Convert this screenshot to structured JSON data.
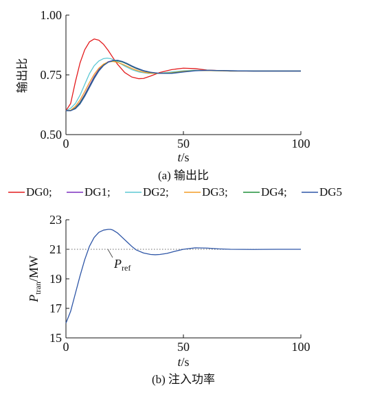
{
  "chart_data": [
    {
      "type": "line",
      "ylabel": "输出比",
      "xlabel_italic": "t",
      "xlabel_unit": "/s",
      "caption": "(a) 输出比",
      "xlim": [
        0,
        100
      ],
      "ylim": [
        0.5,
        1.0
      ],
      "x_ticks": [
        "0",
        "50",
        "100"
      ],
      "x_tick_values": [
        0,
        50,
        100
      ],
      "y_ticks": [
        "0.50",
        "0.75",
        "1.00"
      ],
      "y_tick_values": [
        0.5,
        0.75,
        1.0
      ],
      "grid": false,
      "legend_position": "below",
      "series": [
        {
          "name": "DG0",
          "color": "#e31a1c",
          "x": [
            0,
            2,
            4,
            6,
            8,
            10,
            12,
            14,
            16,
            18,
            20,
            22,
            25,
            28,
            31,
            33,
            36,
            40,
            45,
            50,
            55,
            60,
            70,
            80,
            90,
            100
          ],
          "y": [
            0.6,
            0.63,
            0.72,
            0.8,
            0.855,
            0.888,
            0.9,
            0.895,
            0.878,
            0.852,
            0.822,
            0.794,
            0.76,
            0.741,
            0.734,
            0.735,
            0.745,
            0.76,
            0.772,
            0.778,
            0.776,
            0.77,
            0.766,
            0.766,
            0.766,
            0.766
          ]
        },
        {
          "name": "DG1",
          "color": "#7b2fbf",
          "x": [
            0,
            2,
            4,
            6,
            8,
            10,
            12,
            14,
            16,
            18,
            20,
            22,
            24,
            26,
            28,
            30,
            33,
            36,
            40,
            45,
            50,
            55,
            60,
            70,
            80,
            90,
            100
          ],
          "y": [
            0.6,
            0.6,
            0.612,
            0.635,
            0.668,
            0.705,
            0.742,
            0.772,
            0.793,
            0.805,
            0.81,
            0.809,
            0.804,
            0.795,
            0.785,
            0.776,
            0.766,
            0.76,
            0.756,
            0.758,
            0.764,
            0.768,
            0.769,
            0.767,
            0.766,
            0.766,
            0.766
          ]
        },
        {
          "name": "DG2",
          "color": "#5bc8d4",
          "x": [
            0,
            2,
            4,
            6,
            8,
            10,
            12,
            14,
            16,
            17.5,
            19,
            21,
            23,
            25,
            28,
            31,
            35,
            40,
            45,
            50,
            55,
            60,
            70,
            80,
            90,
            100
          ],
          "y": [
            0.6,
            0.61,
            0.63,
            0.665,
            0.71,
            0.755,
            0.788,
            0.808,
            0.818,
            0.82,
            0.818,
            0.81,
            0.798,
            0.787,
            0.772,
            0.762,
            0.756,
            0.757,
            0.762,
            0.767,
            0.769,
            0.768,
            0.766,
            0.766,
            0.766,
            0.766
          ]
        },
        {
          "name": "DG3",
          "color": "#f39c27",
          "x": [
            0,
            2,
            4,
            6,
            8,
            10,
            12,
            14,
            16,
            18,
            20,
            22,
            24,
            26,
            28,
            30,
            33,
            36,
            40,
            45,
            50,
            55,
            60,
            70,
            80,
            90,
            100
          ],
          "y": [
            0.6,
            0.602,
            0.618,
            0.645,
            0.68,
            0.718,
            0.752,
            0.778,
            0.795,
            0.804,
            0.806,
            0.802,
            0.795,
            0.786,
            0.777,
            0.769,
            0.761,
            0.757,
            0.756,
            0.759,
            0.765,
            0.768,
            0.768,
            0.766,
            0.766,
            0.766,
            0.766
          ]
        },
        {
          "name": "DG4",
          "color": "#1e8f3a",
          "x": [
            0,
            2,
            4,
            6,
            8,
            10,
            12,
            14,
            16,
            18,
            20,
            22,
            24,
            26,
            28,
            30,
            33,
            36,
            40,
            45,
            50,
            55,
            60,
            70,
            80,
            90,
            100
          ],
          "y": [
            0.6,
            0.6,
            0.61,
            0.632,
            0.664,
            0.7,
            0.737,
            0.768,
            0.79,
            0.803,
            0.809,
            0.809,
            0.804,
            0.796,
            0.786,
            0.777,
            0.767,
            0.76,
            0.756,
            0.757,
            0.763,
            0.768,
            0.769,
            0.767,
            0.766,
            0.766,
            0.766
          ]
        },
        {
          "name": "DG5",
          "color": "#2d55a6",
          "x": [
            0,
            2,
            4,
            6,
            8,
            10,
            12,
            14,
            16,
            18,
            20,
            22,
            24,
            26,
            28,
            30,
            33,
            36,
            40,
            45,
            50,
            55,
            60,
            70,
            80,
            90,
            100
          ],
          "y": [
            0.6,
            0.6,
            0.608,
            0.628,
            0.66,
            0.697,
            0.734,
            0.766,
            0.789,
            0.803,
            0.81,
            0.811,
            0.806,
            0.798,
            0.788,
            0.779,
            0.768,
            0.761,
            0.756,
            0.756,
            0.762,
            0.767,
            0.769,
            0.767,
            0.766,
            0.766,
            0.766
          ]
        }
      ]
    },
    {
      "type": "line",
      "ylabel_main": "P",
      "ylabel_sub": "tran",
      "ylabel_unit": "/MW",
      "xlabel_italic": "t",
      "xlabel_unit": "/s",
      "caption": "(b) 注入功率",
      "xlim": [
        0,
        100
      ],
      "ylim": [
        15,
        23
      ],
      "x_ticks": [
        "0",
        "50",
        "100"
      ],
      "x_tick_values": [
        0,
        50,
        100
      ],
      "y_ticks": [
        "15",
        "17",
        "19",
        "21",
        "23"
      ],
      "y_tick_values": [
        15,
        17,
        19,
        21,
        23
      ],
      "grid": false,
      "reference": {
        "value": 21,
        "label_main": "P",
        "label_sub": "ref",
        "style": "dotted",
        "color": "#666666"
      },
      "series": [
        {
          "name": "P_tran",
          "color": "#2d55a6",
          "x": [
            0,
            2,
            4,
            6,
            8,
            10,
            12,
            14,
            16,
            18,
            19,
            20,
            22,
            24,
            26,
            28,
            30,
            33,
            36,
            38,
            40,
            43,
            46,
            50,
            55,
            60,
            65,
            70,
            80,
            90,
            100
          ],
          "y": [
            16.0,
            16.8,
            18.0,
            19.2,
            20.3,
            21.2,
            21.8,
            22.15,
            22.3,
            22.35,
            22.35,
            22.3,
            22.1,
            21.8,
            21.5,
            21.2,
            20.95,
            20.75,
            20.65,
            20.63,
            20.65,
            20.72,
            20.85,
            21.0,
            21.1,
            21.08,
            21.03,
            21.0,
            20.99,
            21.0,
            21.0
          ]
        }
      ]
    }
  ]
}
